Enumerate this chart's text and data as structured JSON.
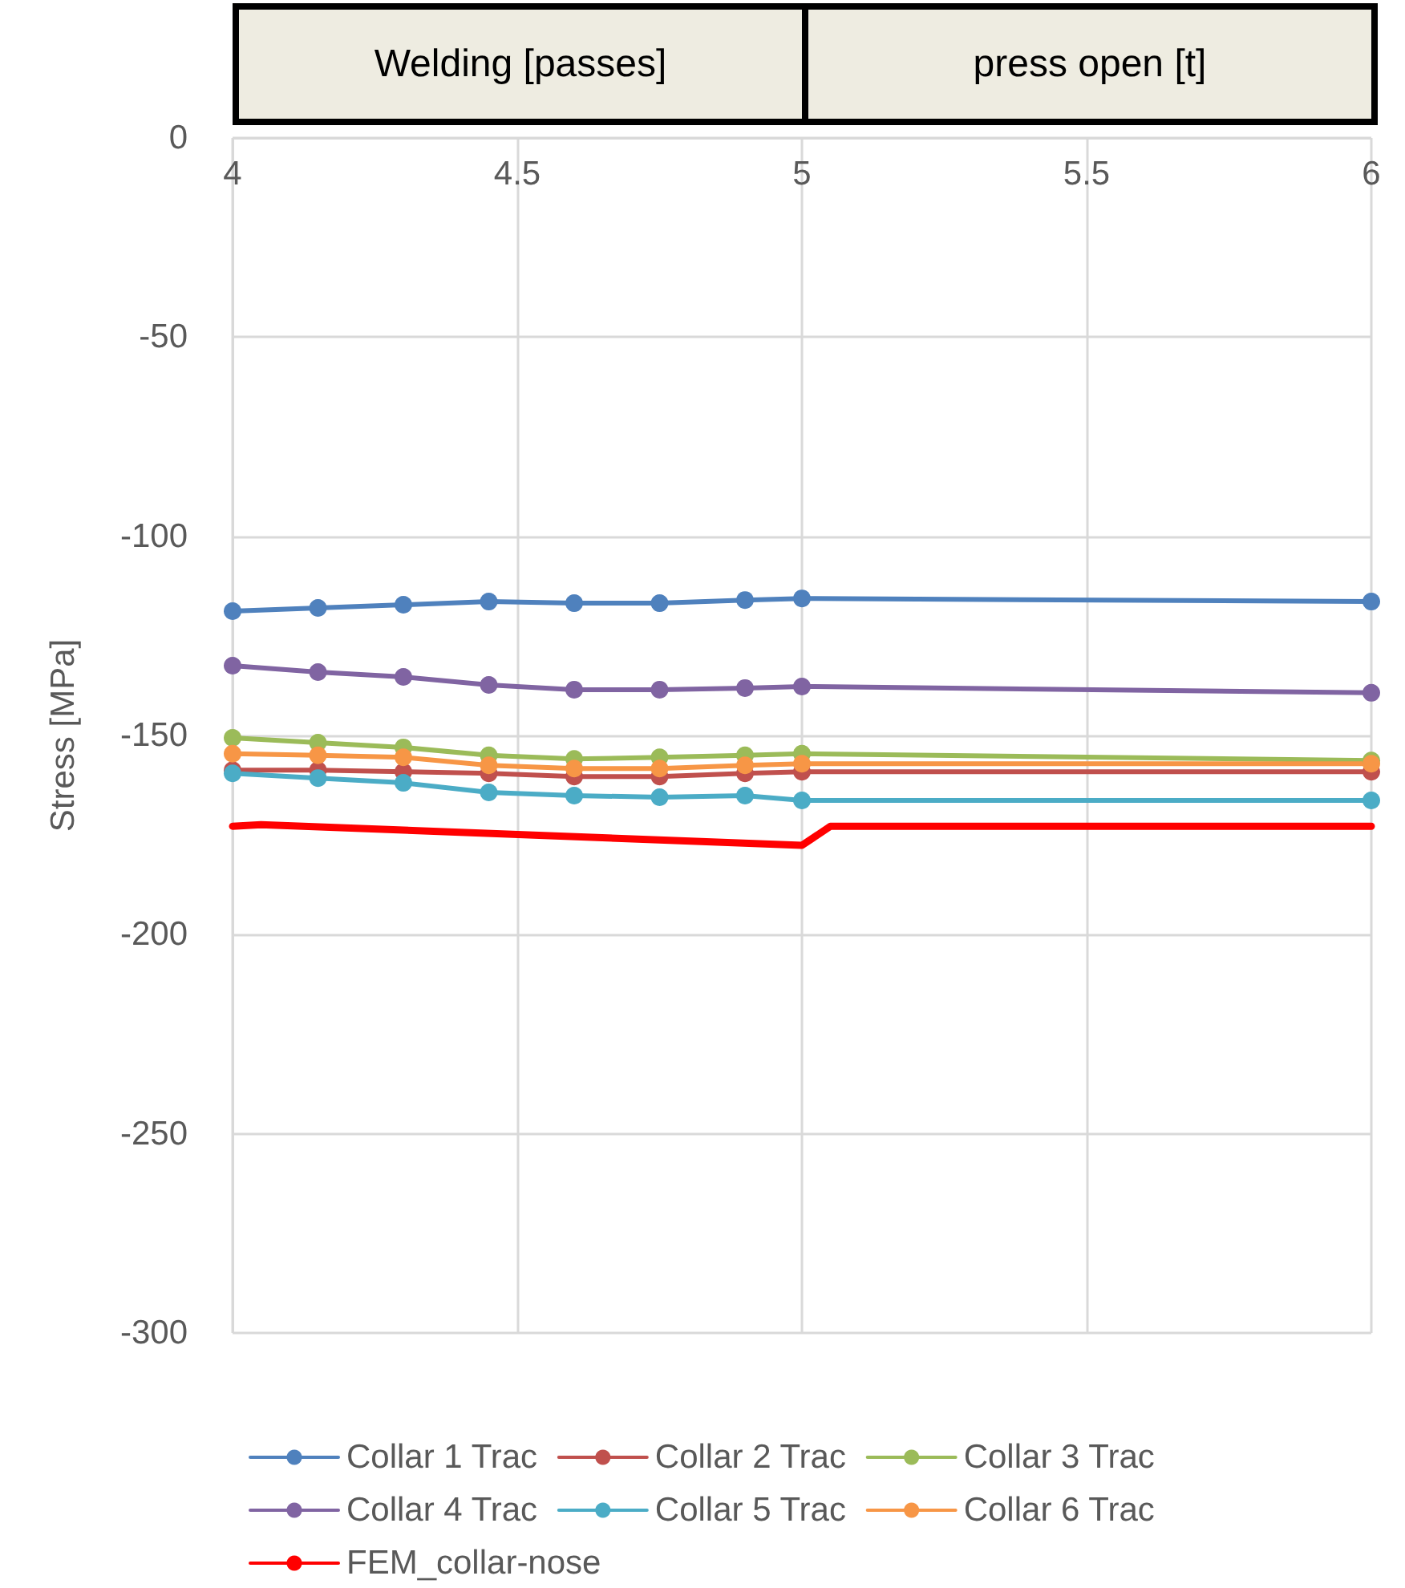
{
  "chart_data": {
    "type": "line",
    "ylabel": "Stress [MPa]",
    "annotations": [
      "Welding [passes]",
      "press open [t]"
    ],
    "x": [
      4,
      4.15,
      4.3,
      4.45,
      4.6,
      4.75,
      4.9,
      5,
      6
    ],
    "series": [
      {
        "name": "Collar 1 Trac",
        "color": "#4f81bd",
        "values": [
          -118.8,
          -118,
          -117.2,
          -116.4,
          -116.8,
          -116.8,
          -116,
          -115.6,
          -116.4
        ]
      },
      {
        "name": "Collar 2 Trac",
        "color": "#c0504d",
        "values": [
          -158.7,
          -158.7,
          -159.1,
          -159.5,
          -160.3,
          -160.3,
          -159.5,
          -159.1,
          -159.1
        ]
      },
      {
        "name": "Collar 3 Trac",
        "color": "#9bbb59",
        "values": [
          -150.6,
          -151.8,
          -153,
          -155,
          -155.9,
          -155.5,
          -155,
          -154.6,
          -156.3
        ]
      },
      {
        "name": "Collar 4 Trac",
        "color": "#8064a2",
        "values": [
          -132.5,
          -134.1,
          -135.3,
          -137.3,
          -138.5,
          -138.5,
          -138.1,
          -137.7,
          -139.3
        ]
      },
      {
        "name": "Collar 5 Trac",
        "color": "#4bacc6",
        "values": [
          -159.5,
          -160.7,
          -161.9,
          -164.3,
          -165.1,
          -165.5,
          -165.1,
          -166.3,
          -166.3
        ]
      },
      {
        "name": "Collar 6 Trac",
        "color": "#f79646",
        "values": [
          -154.6,
          -155,
          -155.5,
          -157.5,
          -158.3,
          -158.3,
          -157.5,
          -157.1,
          -157.1
        ]
      },
      {
        "name": "FEM_collar-nose",
        "color": "#ff0000",
        "marker": "none",
        "x": [
          4,
          4.05,
          5,
          5.05,
          6
        ],
        "values": [
          -172.8,
          -172.4,
          -177.6,
          -172.8,
          -172.8
        ]
      }
    ],
    "xlim": [
      4,
      6
    ],
    "xticks": [
      4,
      4.5,
      5,
      5.5,
      6
    ],
    "ylim": [
      -300,
      0
    ],
    "yticks": [
      -300,
      -250,
      -200,
      -150,
      -100,
      -50,
      0
    ],
    "grid": true,
    "legend": "bottom",
    "marker": "circle",
    "line_style": "solid"
  }
}
